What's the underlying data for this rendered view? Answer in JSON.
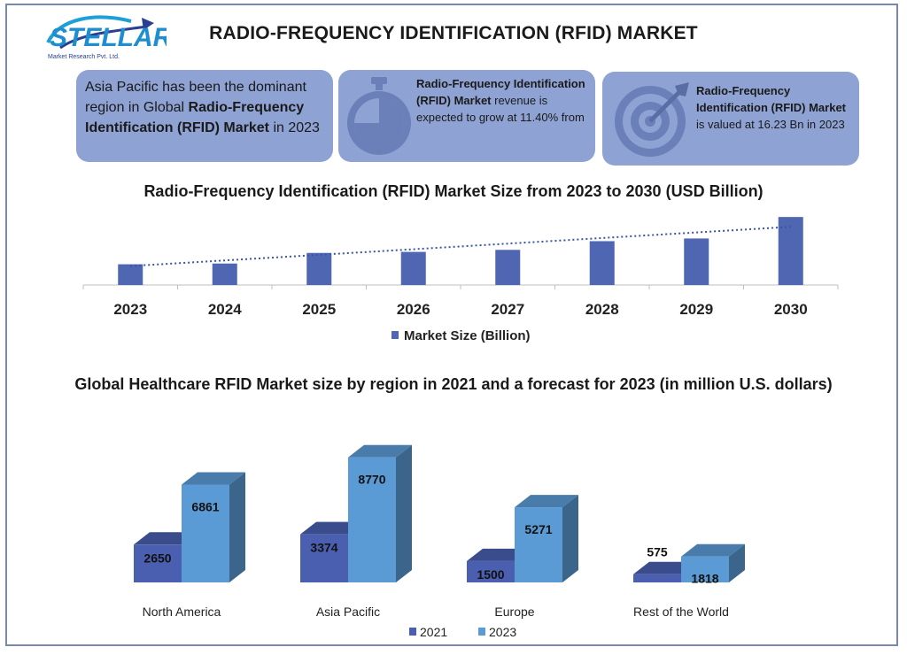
{
  "brand": {
    "name": "STELLAR",
    "tagline": "Market Research Pvt. Ltd."
  },
  "page_title": "RADIO-FREQUENCY IDENTIFICATION (RFID) MARKET",
  "cards": [
    {
      "parts": [
        {
          "text": "Asia Pacific has been the dominant region in Global ",
          "bold": false
        },
        {
          "text": "Radio-Frequency Identification (RFID) Market",
          "bold": true
        },
        {
          "text": " in 2023",
          "bold": false
        }
      ]
    },
    {
      "icon": "stopwatch-icon",
      "parts": [
        {
          "text": "Radio-Frequency Identification (RFID) Market",
          "bold": true
        },
        {
          "text": " revenue is expected to grow at 11.40% from",
          "bold": false
        }
      ]
    },
    {
      "icon": "target-icon",
      "parts": [
        {
          "text": "Radio-Frequency Identification (RFID) Market",
          "bold": true
        },
        {
          "text": " is valued at 16.23 Bn in 2023",
          "bold": false
        }
      ]
    }
  ],
  "colors": {
    "card_bg": "#8fa2d4",
    "bar_primary": "#4f66b3",
    "bar_2021": "#4a5fb0",
    "bar_2023": "#5b9bd5",
    "trend": "#3a55a8"
  },
  "chart_data": [
    {
      "type": "bar",
      "title": "Radio-Frequency Identification (RFID) Market Size from 2023 to 2030 (USD Billion)",
      "categories": [
        "2023",
        "2024",
        "2025",
        "2026",
        "2027",
        "2028",
        "2029",
        "2030"
      ],
      "series": [
        {
          "name": "Market Size (Billion)",
          "values": [
            16.23,
            16.8,
            25.1,
            25.9,
            27.5,
            34.3,
            36.4,
            53.2
          ]
        }
      ],
      "trendline": true,
      "ylim": [
        0,
        54
      ],
      "legend": "bottom",
      "grid": false
    },
    {
      "type": "bar",
      "title": "Global Healthcare RFID Market size by region in 2021 and a forecast for 2023 (in million U.S. dollars)",
      "categories": [
        "North America",
        "Asia Pacific",
        "Europe",
        "Rest of the World"
      ],
      "series": [
        {
          "name": "2021",
          "values": [
            2650,
            3374,
            1500,
            575
          ]
        },
        {
          "name": "2023",
          "values": [
            6861,
            8770,
            5271,
            1818
          ]
        }
      ],
      "ylim": [
        0,
        9000
      ],
      "style": "3d",
      "legend": "bottom",
      "grid": false
    }
  ]
}
